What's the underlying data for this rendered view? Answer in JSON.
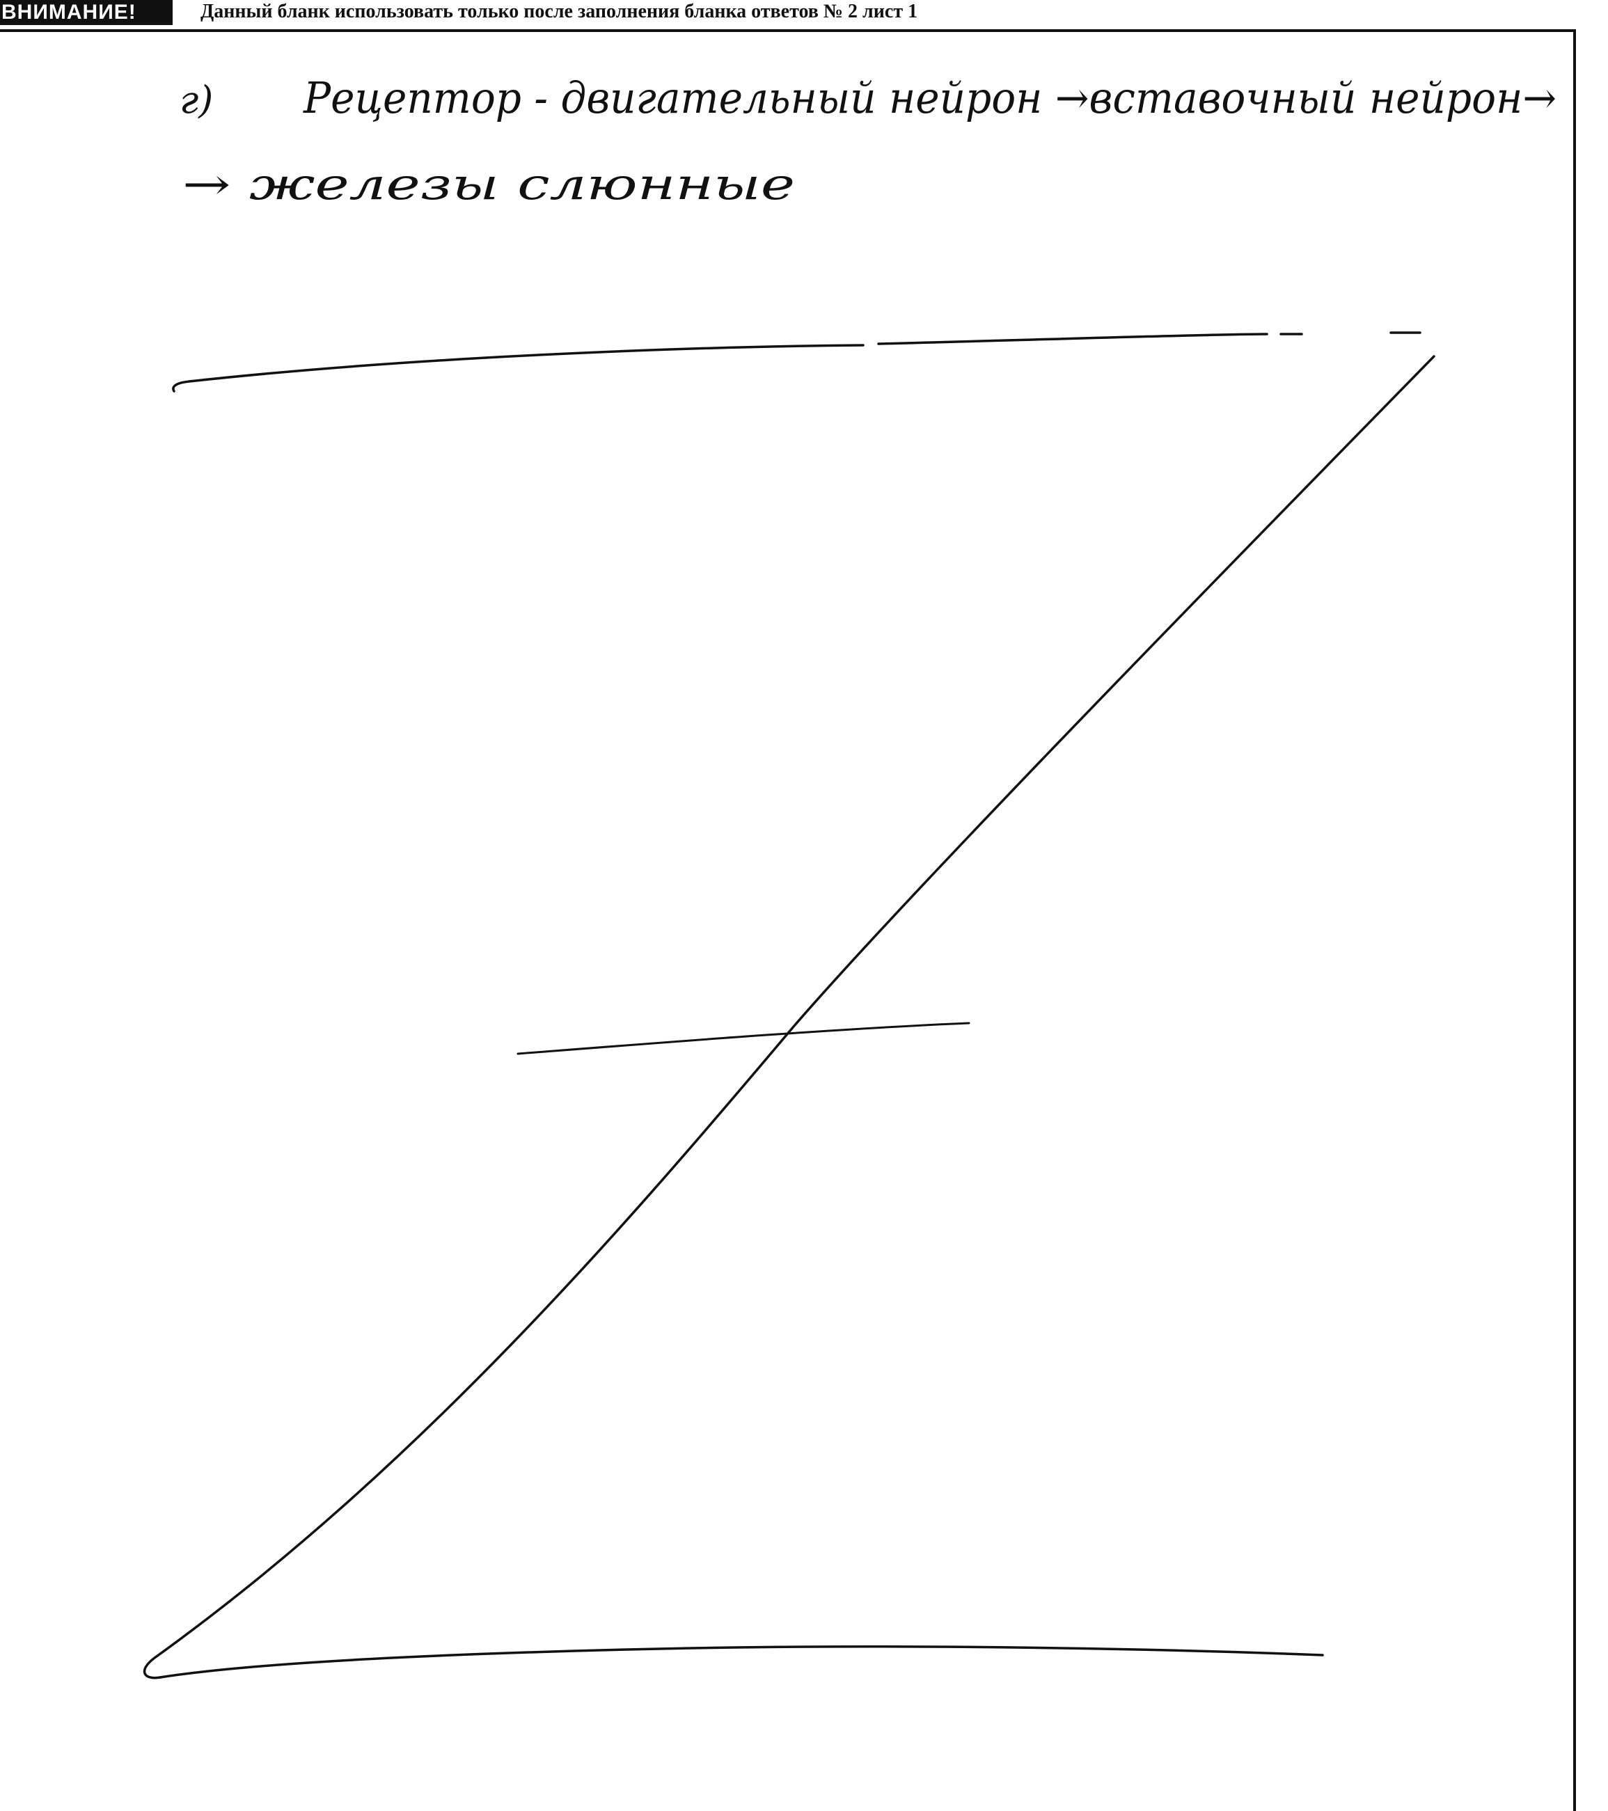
{
  "header": {
    "warning_label": "ВНИМАНИЕ!",
    "notice": "Данный бланк использовать только после заполнения бланка ответов № 2 лист 1"
  },
  "answer": {
    "item_marker": "г)",
    "line1": "Рецептор - двигательный нейрон →вставочный нейрон→",
    "line2": "→ железы слюнные"
  },
  "colors": {
    "ink": "#111111",
    "paper": "#ffffff"
  }
}
